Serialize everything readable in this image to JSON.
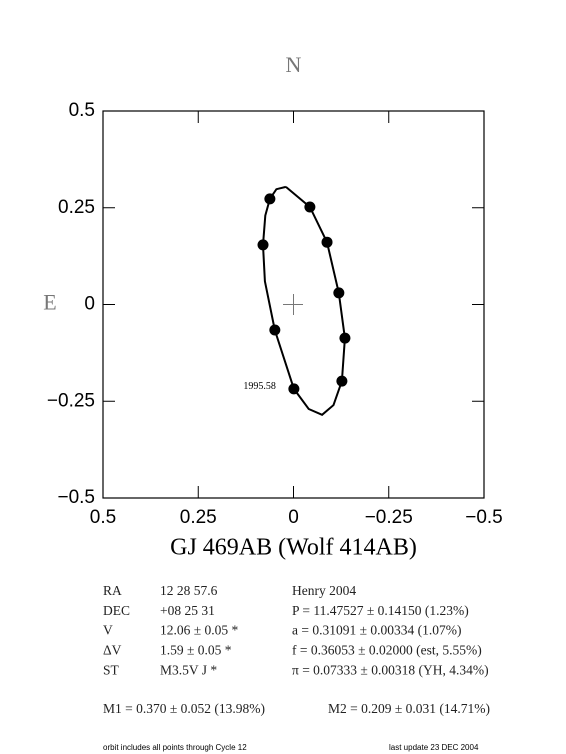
{
  "chart_data": {
    "type": "scatter",
    "top_label": "N",
    "left_label": "E",
    "xlabel": "GJ 469AB (Wolf 414AB)",
    "annotation": "1995.58",
    "xlim": [
      0.5,
      -0.5
    ],
    "ylim": [
      -0.5,
      0.5
    ],
    "xticks": [
      0.5,
      0.25,
      0,
      {
        "value": -0.25,
        "label": "−0.25"
      },
      {
        "value": -0.5,
        "label": "−0.5"
      }
    ],
    "yticks": [
      {
        "value": -0.5,
        "label": "−0.5"
      },
      {
        "value": -0.25,
        "label": "−0.25"
      },
      0,
      0.25,
      0.5
    ],
    "series": [
      {
        "type": "line",
        "color": "#000000",
        "x": [
          0.02,
          -0.043,
          -0.088,
          -0.119,
          -0.135,
          -0.127,
          -0.105,
          -0.075,
          -0.04,
          -0.001,
          0.049,
          0.075,
          0.08,
          0.074,
          0.062,
          0.045,
          0.02
        ],
        "values": [
          0.304,
          0.252,
          0.161,
          0.03,
          -0.087,
          -0.198,
          -0.26,
          -0.285,
          -0.27,
          -0.218,
          -0.066,
          0.06,
          0.154,
          0.23,
          0.273,
          0.298,
          0.304
        ]
      },
      {
        "type": "scatter",
        "color": "#000000",
        "x": [
          0.062,
          -0.043,
          -0.088,
          0.08,
          -0.119,
          -0.135,
          0.049,
          -0.127,
          -0.001
        ],
        "values": [
          0.273,
          0.252,
          0.161,
          0.154,
          0.03,
          -0.087,
          -0.066,
          -0.198,
          -0.218
        ]
      }
    ]
  },
  "info": {
    "rows": [
      [
        "RA",
        "12 28 57.6",
        "Henry 2004"
      ],
      [
        "DEC",
        "+08 25 31",
        "P = 11.47527 ± 0.14150 (1.23%)"
      ],
      [
        "V",
        "12.06 ± 0.05 *",
        "a = 0.31091 ± 0.00334 (1.07%)"
      ],
      [
        "ΔV",
        "1.59 ± 0.05 *",
        "f = 0.36053 ± 0.02000 (est, 5.55%)"
      ],
      [
        "ST",
        "M3.5V J *",
        "π = 0.07333 ± 0.00318 (YH, 4.34%)"
      ]
    ],
    "masses": [
      "M1 = 0.370 ± 0.052 (13.98%)",
      "M2 = 0.209 ± 0.031 (14.71%)"
    ],
    "footer": [
      "orbit includes all points through Cycle 12",
      "last update 23 DEC 2004"
    ]
  }
}
